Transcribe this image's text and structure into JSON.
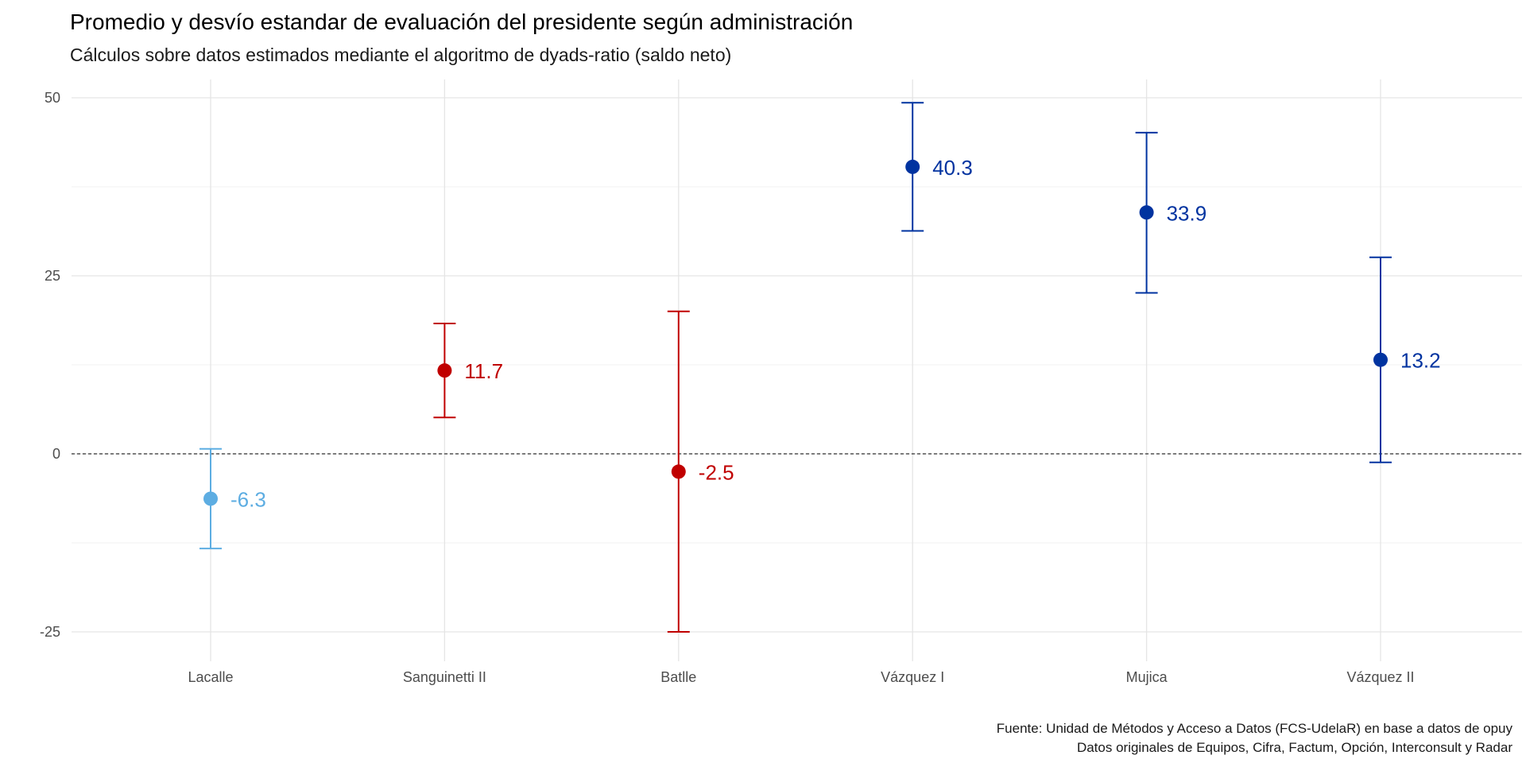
{
  "chart_data": {
    "type": "scatter",
    "title": "Promedio y desvío estandar de evaluación del presidente según administración",
    "subtitle": "Cálculos sobre datos estimados mediante el algoritmo de dyads-ratio (saldo neto)",
    "xlabel": "",
    "ylabel": "",
    "ylim": [
      -28,
      50.5
    ],
    "yticks": [
      -25,
      0,
      25,
      50
    ],
    "grid": true,
    "reference_line": {
      "y": 0,
      "style": "dashed"
    },
    "categories": [
      "Lacalle",
      "Sanguinetti II",
      "Batlle",
      "Vázquez I",
      "Mujica",
      "Vázquez II"
    ],
    "points": [
      {
        "x": "Lacalle",
        "mean": -6.3,
        "ymin": -13.3,
        "ymax": 0.7,
        "label": "-6.3",
        "color": "#5dade2"
      },
      {
        "x": "Sanguinetti II",
        "mean": 11.7,
        "ymin": 5.1,
        "ymax": 18.3,
        "label": "11.7",
        "color": "#c00000"
      },
      {
        "x": "Batlle",
        "mean": -2.5,
        "ymin": -25.0,
        "ymax": 20.0,
        "label": "-2.5",
        "color": "#c00000"
      },
      {
        "x": "Vázquez I",
        "mean": 40.3,
        "ymin": 31.3,
        "ymax": 49.3,
        "label": "40.3",
        "color": "#0033a0"
      },
      {
        "x": "Mujica",
        "mean": 33.9,
        "ymin": 22.6,
        "ymax": 45.1,
        "label": "33.9",
        "color": "#0033a0"
      },
      {
        "x": "Vázquez II",
        "mean": 13.2,
        "ymin": -1.2,
        "ymax": 27.6,
        "label": "13.2",
        "color": "#0033a0"
      }
    ]
  },
  "caption": {
    "line1": "Fuente: Unidad de Métodos y Acceso a Datos (FCS-UdelaR) en base a datos de opuy",
    "line2": "Datos originales de Equipos, Cifra, Factum, Opción, Interconsult y Radar"
  }
}
